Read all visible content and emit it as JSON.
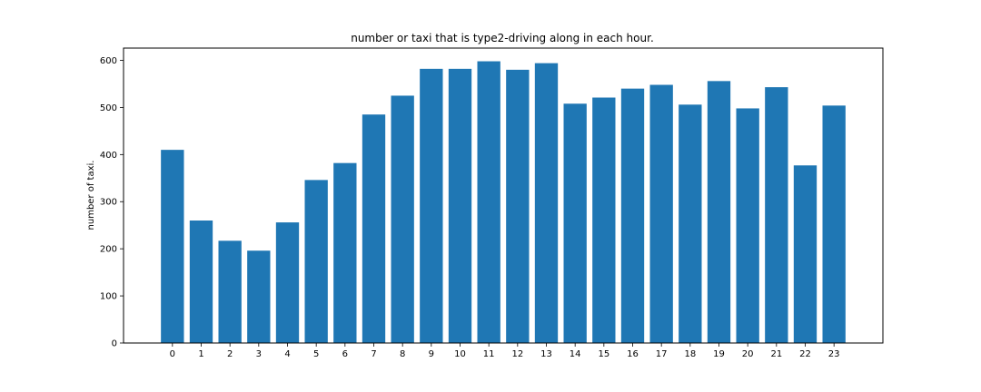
{
  "chart_data": {
    "type": "bar",
    "title": "number or taxi that is type2-driving along in each hour.",
    "xlabel": "",
    "ylabel": "number of taxi.",
    "categories": [
      "0",
      "1",
      "2",
      "3",
      "4",
      "5",
      "6",
      "7",
      "8",
      "9",
      "10",
      "11",
      "12",
      "13",
      "14",
      "15",
      "16",
      "17",
      "18",
      "19",
      "20",
      "21",
      "22",
      "23"
    ],
    "values": [
      410,
      260,
      217,
      196,
      256,
      346,
      382,
      485,
      525,
      582,
      582,
      598,
      580,
      594,
      508,
      521,
      540,
      548,
      506,
      556,
      498,
      543,
      377,
      504
    ],
    "ylim": [
      0,
      626
    ],
    "yticks": [
      0,
      100,
      200,
      300,
      400,
      500,
      600
    ],
    "bar_color": "#1f77b4",
    "grid": false,
    "legend": "none"
  }
}
